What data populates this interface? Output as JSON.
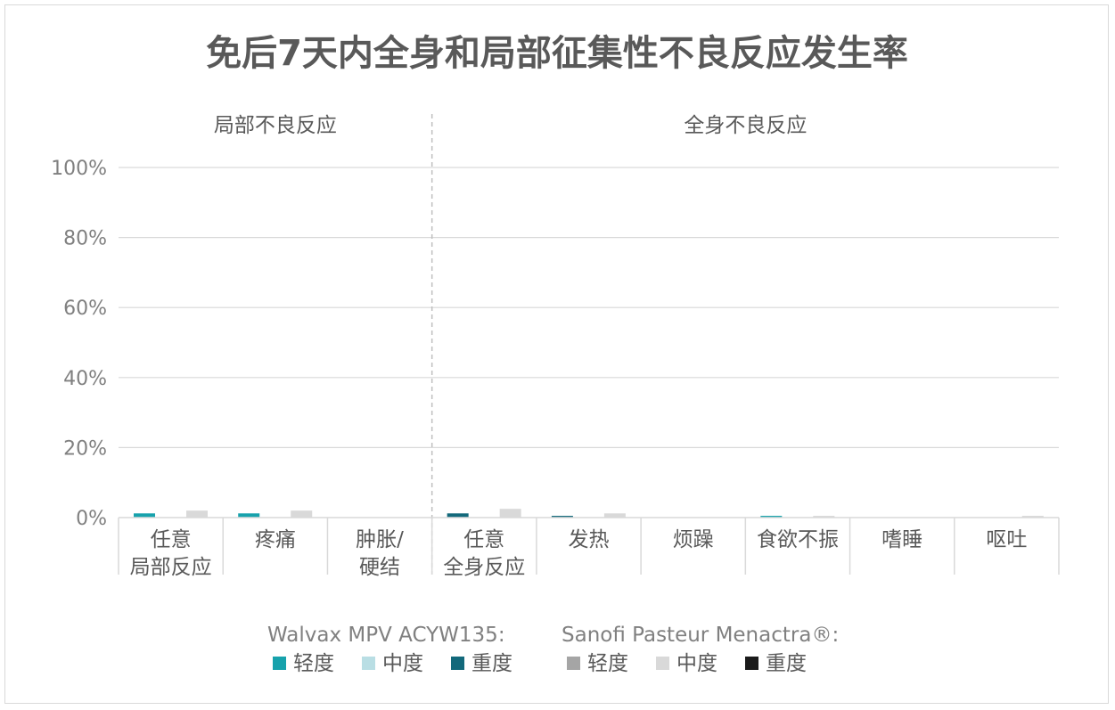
{
  "chart_data": {
    "type": "bar",
    "title": "免后7天内全身和局部征集性不良反应发生率",
    "groups": [
      {
        "label": "局部不良反应",
        "categories": [
          0,
          1,
          2
        ]
      },
      {
        "label": "全身不良反应",
        "categories": [
          3,
          4,
          5,
          6,
          7,
          8
        ]
      }
    ],
    "categories": [
      [
        "任意",
        "局部反应"
      ],
      [
        "疼痛"
      ],
      [
        "肿胀/",
        "硬结"
      ],
      [
        "任意",
        "全身反应"
      ],
      [
        "发热"
      ],
      [
        "烦躁"
      ],
      [
        "食欲不振"
      ],
      [
        "嗜睡"
      ],
      [
        "呕吐"
      ]
    ],
    "yticks": [
      "0%",
      "20%",
      "40%",
      "60%",
      "80%",
      "100%"
    ],
    "ylim": [
      0,
      100
    ],
    "grid": true,
    "series": [
      {
        "name": "轻度",
        "vaccine": 0,
        "color": "#17a2ac",
        "values": [
          1.2,
          1.2,
          0,
          0,
          0,
          0,
          0.5,
          0,
          0
        ]
      },
      {
        "name": "中度",
        "vaccine": 0,
        "color": "#b9dee4",
        "values": [
          0,
          0,
          0,
          0,
          0,
          0,
          0,
          0,
          0
        ]
      },
      {
        "name": "重度",
        "vaccine": 0,
        "color": "#13697b",
        "values": [
          0,
          0,
          0,
          1.2,
          0.5,
          0,
          0,
          0,
          0
        ]
      },
      {
        "name": "轻度",
        "vaccine": 1,
        "color": "#a5a5a5",
        "values": [
          0,
          0,
          0,
          0,
          0,
          0,
          0,
          0,
          0
        ]
      },
      {
        "name": "中度",
        "vaccine": 1,
        "color": "#d9d9d9",
        "values": [
          2.0,
          2.0,
          0,
          2.5,
          1.2,
          0,
          0.5,
          0,
          0.5
        ]
      },
      {
        "name": "重度",
        "vaccine": 1,
        "color": "#1a1a1a",
        "values": [
          0,
          0,
          0,
          0,
          0,
          0,
          0,
          0,
          0
        ]
      }
    ],
    "legend": {
      "placement": "bottom",
      "groups": [
        {
          "title": "Walvax MPV ACYW135:",
          "series": [
            0,
            1,
            2
          ]
        },
        {
          "title": "Sanofi Pasteur Menactra®:",
          "series": [
            3,
            4,
            5
          ]
        }
      ]
    }
  }
}
